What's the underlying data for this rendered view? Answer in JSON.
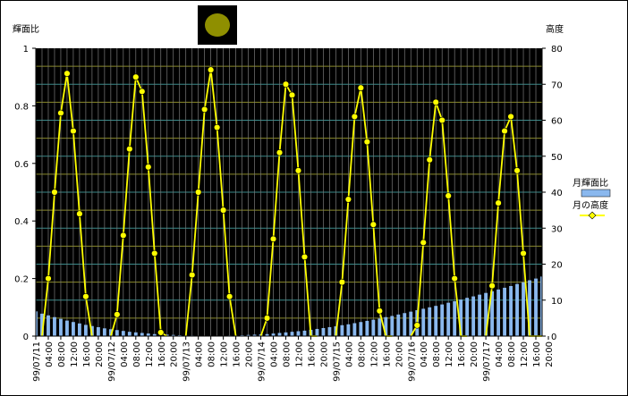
{
  "chart_data": {
    "type": "bar+line",
    "title": "",
    "y_left_label": "輝面比",
    "y_right_label": "高度",
    "y_left_ticks": [
      "0",
      "0.2",
      "0.4",
      "0.6",
      "0.8",
      "1"
    ],
    "y_right_ticks": [
      "0",
      "10",
      "20",
      "30",
      "40",
      "50",
      "60",
      "70",
      "80"
    ],
    "y_left_range": [
      0,
      1
    ],
    "y_right_range": [
      0,
      80
    ],
    "legend_placement": "right",
    "grid": true,
    "x_start_hour": 0,
    "x_hours_total": 162,
    "x_tick_labels": [
      "99/07/11",
      "04:00",
      "08:00",
      "12:00",
      "16:00",
      "20:00",
      "99/07/12",
      "04:00",
      "08:00",
      "12:00",
      "16:00",
      "20:00",
      "99/07/13",
      "04:00",
      "08:00",
      "12:00",
      "16:00",
      "20:00",
      "99/07/14",
      "04:00",
      "08:00",
      "12:00",
      "16:00",
      "20:00",
      "99/07/15",
      "04:00",
      "08:00",
      "12:00",
      "16:00",
      "20:00",
      "99/07/16",
      "04:00",
      "08:00",
      "12:00",
      "16:00",
      "20:00",
      "99/07/17",
      "04:00",
      "08:00",
      "12:00",
      "16:00",
      "20:00"
    ],
    "series": [
      {
        "name": "月輝面比",
        "kind": "bar",
        "axis": "left",
        "color": "#8ab8ee",
        "x_hours": [
          0,
          2,
          4,
          6,
          8,
          10,
          12,
          14,
          16,
          18,
          20,
          22,
          24,
          26,
          28,
          30,
          32,
          34,
          36,
          38,
          40,
          42,
          44,
          46,
          48,
          50,
          52,
          54,
          56,
          58,
          60,
          62,
          64,
          66,
          68,
          70,
          72,
          74,
          76,
          78,
          80,
          82,
          84,
          86,
          88,
          90,
          92,
          94,
          96,
          98,
          100,
          102,
          104,
          106,
          108,
          110,
          112,
          114,
          116,
          118,
          120,
          122,
          124,
          126,
          128,
          130,
          132,
          134,
          136,
          138,
          140,
          142,
          144,
          146,
          148,
          150,
          152,
          154,
          156,
          158,
          160,
          162
        ],
        "values": [
          0.086,
          0.078,
          0.072,
          0.066,
          0.06,
          0.054,
          0.049,
          0.044,
          0.039,
          0.035,
          0.031,
          0.027,
          0.024,
          0.021,
          0.018,
          0.015,
          0.013,
          0.011,
          0.009,
          0.007,
          0.006,
          0.005,
          0.004,
          0.003,
          0.002,
          0.002,
          0.001,
          0.001,
          0.001,
          0.001,
          0.001,
          0.002,
          0.002,
          0.003,
          0.004,
          0.005,
          0.006,
          0.007,
          0.009,
          0.011,
          0.013,
          0.015,
          0.017,
          0.019,
          0.022,
          0.025,
          0.028,
          0.031,
          0.034,
          0.038,
          0.041,
          0.045,
          0.049,
          0.053,
          0.057,
          0.061,
          0.066,
          0.07,
          0.075,
          0.08,
          0.085,
          0.09,
          0.095,
          0.1,
          0.105,
          0.11,
          0.116,
          0.121,
          0.127,
          0.133,
          0.138,
          0.144,
          0.15,
          0.156,
          0.162,
          0.168,
          0.174,
          0.181,
          0.187,
          0.194,
          0.2,
          0.207
        ]
      },
      {
        "name": "月の高度",
        "kind": "line",
        "axis": "right",
        "color": "#ffff00",
        "marker_color": "#ffff00",
        "x_hours": [
          2,
          4,
          6,
          8,
          10,
          12,
          14,
          16,
          18,
          24,
          26,
          28,
          30,
          32,
          34,
          36,
          38,
          40,
          42,
          48,
          50,
          52,
          54,
          56,
          58,
          60,
          62,
          64,
          72,
          74,
          76,
          78,
          80,
          82,
          84,
          86,
          88,
          90,
          96,
          98,
          100,
          102,
          104,
          106,
          108,
          110,
          112,
          114,
          120,
          122,
          124,
          126,
          128,
          130,
          132,
          134,
          136,
          138,
          144,
          146,
          148,
          150,
          152,
          154,
          156,
          158,
          160,
          162
        ],
        "values": [
          0,
          16,
          40,
          62,
          73,
          57,
          34,
          11,
          0,
          0,
          6,
          28,
          52,
          72,
          68,
          47,
          23,
          1,
          0,
          0,
          17,
          40,
          63,
          74,
          58,
          35,
          11,
          0,
          0,
          5,
          27,
          51,
          70,
          67,
          46,
          22,
          0,
          0,
          0,
          15,
          38,
          61,
          69,
          54,
          31,
          7,
          0,
          0,
          0,
          3,
          26,
          49,
          65,
          60,
          39,
          16,
          0,
          0,
          0,
          14,
          37,
          57,
          61,
          46,
          23,
          0,
          0,
          0
        ],
        "marker_points": [
          [
            4,
            16
          ],
          [
            6,
            40
          ],
          [
            8,
            62
          ],
          [
            10,
            73
          ],
          [
            12,
            57
          ],
          [
            14,
            34
          ],
          [
            16,
            11
          ],
          [
            26,
            6
          ],
          [
            28,
            28
          ],
          [
            30,
            52
          ],
          [
            32,
            72
          ],
          [
            34,
            68
          ],
          [
            36,
            47
          ],
          [
            38,
            23
          ],
          [
            40,
            1
          ],
          [
            50,
            17
          ],
          [
            52,
            40
          ],
          [
            54,
            63
          ],
          [
            56,
            74
          ],
          [
            58,
            58
          ],
          [
            60,
            35
          ],
          [
            62,
            11
          ],
          [
            74,
            5
          ],
          [
            76,
            27
          ],
          [
            78,
            51
          ],
          [
            80,
            70
          ],
          [
            82,
            67
          ],
          [
            84,
            46
          ],
          [
            86,
            22
          ],
          [
            98,
            15
          ],
          [
            100,
            38
          ],
          [
            102,
            61
          ],
          [
            104,
            69
          ],
          [
            106,
            54
          ],
          [
            108,
            31
          ],
          [
            110,
            7
          ],
          [
            122,
            3
          ],
          [
            124,
            26
          ],
          [
            126,
            49
          ],
          [
            128,
            65
          ],
          [
            130,
            60
          ],
          [
            132,
            39
          ],
          [
            134,
            16
          ],
          [
            146,
            14
          ],
          [
            148,
            37
          ],
          [
            150,
            57
          ],
          [
            152,
            61
          ],
          [
            154,
            46
          ],
          [
            156,
            23
          ]
        ]
      }
    ]
  },
  "moon_icon": "moon-phase-icon"
}
